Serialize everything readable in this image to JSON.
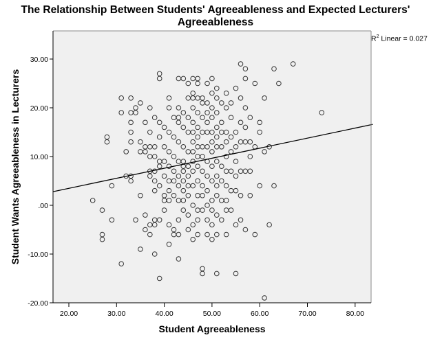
{
  "chart_data": {
    "type": "scatter",
    "title": "The Relationship Between Students' Agreeableness and Expected Lecturers' Agreeableness",
    "xlabel": "Student Agreeableness",
    "ylabel": "Student Wants Agreeableness in Lecturers",
    "xlim": [
      16.7,
      83.7
    ],
    "ylim": [
      -20,
      35
    ],
    "x_ticks": [
      "20.00",
      "30.00",
      "40.00",
      "50.00",
      "60.00",
      "70.00",
      "80.00"
    ],
    "y_ticks": [
      "30.00",
      "20.00",
      "10.00",
      ".00",
      "-10.00",
      "-20.00"
    ],
    "y_tick_values": [
      30,
      20,
      10,
      0,
      -10,
      -20
    ],
    "x_tick_values": [
      20,
      30,
      40,
      50,
      60,
      70,
      80
    ],
    "grid": false,
    "legend": null,
    "annotation": {
      "text": "Linear = 0.027",
      "prefix": "R",
      "sup": "2"
    },
    "fit_line": {
      "type": "linear",
      "r2": 0.027,
      "x0": 16.7,
      "y0": 2.8,
      "x1": 83.7,
      "y1": 16.6
    },
    "points": [
      [
        25,
        1
      ],
      [
        27,
        -1
      ],
      [
        27,
        -6
      ],
      [
        27,
        -7
      ],
      [
        28,
        14
      ],
      [
        28,
        13
      ],
      [
        29,
        4
      ],
      [
        29,
        -3
      ],
      [
        31,
        22
      ],
      [
        31,
        19
      ],
      [
        31,
        -12
      ],
      [
        32,
        11
      ],
      [
        32,
        6
      ],
      [
        33,
        22
      ],
      [
        33,
        19
      ],
      [
        33,
        17
      ],
      [
        33,
        15
      ],
      [
        33,
        13
      ],
      [
        33,
        6
      ],
      [
        33,
        5
      ],
      [
        34,
        20
      ],
      [
        34,
        19
      ],
      [
        34,
        -3
      ],
      [
        35,
        21
      ],
      [
        35,
        13
      ],
      [
        35,
        11
      ],
      [
        35,
        2
      ],
      [
        35,
        -9
      ],
      [
        36,
        17
      ],
      [
        36,
        12
      ],
      [
        36,
        11
      ],
      [
        36,
        -2
      ],
      [
        36,
        -5
      ],
      [
        37,
        20
      ],
      [
        37,
        15
      ],
      [
        37,
        12
      ],
      [
        37,
        10
      ],
      [
        37,
        7
      ],
      [
        37,
        6
      ],
      [
        37,
        -4
      ],
      [
        37,
        -6
      ],
      [
        38,
        18
      ],
      [
        38,
        12
      ],
      [
        38,
        10
      ],
      [
        38,
        7
      ],
      [
        38,
        5
      ],
      [
        38,
        3
      ],
      [
        38,
        -3
      ],
      [
        38,
        -4
      ],
      [
        38,
        -10
      ],
      [
        39,
        27
      ],
      [
        39,
        26
      ],
      [
        39,
        17
      ],
      [
        39,
        14
      ],
      [
        39,
        9
      ],
      [
        39,
        8
      ],
      [
        39,
        4
      ],
      [
        39,
        -3
      ],
      [
        39,
        -15
      ],
      [
        40,
        16
      ],
      [
        40,
        12
      ],
      [
        40,
        9
      ],
      [
        40,
        6
      ],
      [
        40,
        2
      ],
      [
        40,
        1
      ],
      [
        40,
        -1
      ],
      [
        41,
        22
      ],
      [
        41,
        20
      ],
      [
        41,
        15
      ],
      [
        41,
        11
      ],
      [
        41,
        8
      ],
      [
        41,
        5
      ],
      [
        41,
        3
      ],
      [
        41,
        1
      ],
      [
        41,
        -4
      ],
      [
        41,
        -8
      ],
      [
        42,
        18
      ],
      [
        42,
        14
      ],
      [
        42,
        10
      ],
      [
        42,
        7
      ],
      [
        42,
        5
      ],
      [
        42,
        2
      ],
      [
        42,
        -5
      ],
      [
        42,
        -6
      ],
      [
        43,
        26
      ],
      [
        43,
        20
      ],
      [
        43,
        18
      ],
      [
        43,
        17
      ],
      [
        43,
        13
      ],
      [
        43,
        9
      ],
      [
        43,
        6
      ],
      [
        43,
        4
      ],
      [
        43,
        1
      ],
      [
        43,
        -3
      ],
      [
        43,
        -6
      ],
      [
        43,
        -11
      ],
      [
        44,
        26
      ],
      [
        44,
        19
      ],
      [
        44,
        16
      ],
      [
        44,
        12
      ],
      [
        44,
        9
      ],
      [
        44,
        8
      ],
      [
        44,
        7
      ],
      [
        44,
        5
      ],
      [
        44,
        3
      ],
      [
        44,
        1
      ],
      [
        44,
        -1
      ],
      [
        45,
        25
      ],
      [
        45,
        22
      ],
      [
        45,
        18
      ],
      [
        45,
        15
      ],
      [
        45,
        11
      ],
      [
        45,
        8
      ],
      [
        45,
        6
      ],
      [
        45,
        4
      ],
      [
        45,
        2
      ],
      [
        45,
        -2
      ],
      [
        45,
        -5
      ],
      [
        46,
        26
      ],
      [
        46,
        23
      ],
      [
        46,
        22
      ],
      [
        46,
        20
      ],
      [
        46,
        17
      ],
      [
        46,
        15
      ],
      [
        46,
        13
      ],
      [
        46,
        11
      ],
      [
        46,
        9
      ],
      [
        46,
        7
      ],
      [
        46,
        4
      ],
      [
        46,
        0
      ],
      [
        46,
        -4
      ],
      [
        46,
        -7
      ],
      [
        47,
        26
      ],
      [
        47,
        25
      ],
      [
        47,
        22
      ],
      [
        47,
        19
      ],
      [
        47,
        16
      ],
      [
        47,
        14
      ],
      [
        47,
        12
      ],
      [
        47,
        10
      ],
      [
        47,
        8
      ],
      [
        47,
        5
      ],
      [
        47,
        2
      ],
      [
        47,
        -1
      ],
      [
        47,
        -3
      ],
      [
        47,
        -6
      ],
      [
        48,
        22
      ],
      [
        48,
        21
      ],
      [
        48,
        18
      ],
      [
        48,
        15
      ],
      [
        48,
        12
      ],
      [
        48,
        10
      ],
      [
        48,
        7
      ],
      [
        48,
        4
      ],
      [
        48,
        2
      ],
      [
        48,
        -1
      ],
      [
        48,
        -13
      ],
      [
        48,
        -14
      ],
      [
        49,
        25
      ],
      [
        49,
        21
      ],
      [
        49,
        19
      ],
      [
        49,
        17
      ],
      [
        49,
        15
      ],
      [
        49,
        12
      ],
      [
        49,
        9
      ],
      [
        49,
        6
      ],
      [
        49,
        3
      ],
      [
        49,
        0
      ],
      [
        49,
        -3
      ],
      [
        49,
        -6
      ],
      [
        50,
        26
      ],
      [
        50,
        23
      ],
      [
        50,
        20
      ],
      [
        50,
        18
      ],
      [
        50,
        15
      ],
      [
        50,
        13
      ],
      [
        50,
        11
      ],
      [
        50,
        8
      ],
      [
        50,
        5
      ],
      [
        50,
        1
      ],
      [
        50,
        -1
      ],
      [
        50,
        -4
      ],
      [
        50,
        -7
      ],
      [
        51,
        24
      ],
      [
        51,
        22
      ],
      [
        51,
        19
      ],
      [
        51,
        16
      ],
      [
        51,
        14
      ],
      [
        51,
        12
      ],
      [
        51,
        9
      ],
      [
        51,
        6
      ],
      [
        51,
        4
      ],
      [
        51,
        2
      ],
      [
        51,
        -2
      ],
      [
        51,
        -6
      ],
      [
        51,
        -14
      ],
      [
        52,
        21
      ],
      [
        52,
        17
      ],
      [
        52,
        15
      ],
      [
        52,
        12
      ],
      [
        52,
        8
      ],
      [
        52,
        5
      ],
      [
        52,
        1
      ],
      [
        52,
        -3
      ],
      [
        53,
        23
      ],
      [
        53,
        20
      ],
      [
        53,
        15
      ],
      [
        53,
        13
      ],
      [
        53,
        10
      ],
      [
        53,
        7
      ],
      [
        53,
        4
      ],
      [
        53,
        1
      ],
      [
        53,
        -1
      ],
      [
        53,
        -6
      ],
      [
        54,
        21
      ],
      [
        54,
        18
      ],
      [
        54,
        14
      ],
      [
        54,
        11
      ],
      [
        54,
        7
      ],
      [
        54,
        3
      ],
      [
        54,
        -1
      ],
      [
        55,
        24
      ],
      [
        55,
        15
      ],
      [
        55,
        12
      ],
      [
        55,
        9
      ],
      [
        55,
        6
      ],
      [
        55,
        3
      ],
      [
        55,
        -4
      ],
      [
        55,
        -14
      ],
      [
        56,
        29
      ],
      [
        56,
        22
      ],
      [
        56,
        17
      ],
      [
        56,
        13
      ],
      [
        56,
        7
      ],
      [
        56,
        2
      ],
      [
        56,
        -3
      ],
      [
        57,
        28
      ],
      [
        57,
        26
      ],
      [
        57,
        20
      ],
      [
        57,
        16
      ],
      [
        57,
        13
      ],
      [
        57,
        7
      ],
      [
        57,
        -5
      ],
      [
        58,
        18
      ],
      [
        58,
        13
      ],
      [
        58,
        10
      ],
      [
        58,
        7
      ],
      [
        58,
        2
      ],
      [
        59,
        25
      ],
      [
        59,
        12
      ],
      [
        59,
        -6
      ],
      [
        60,
        17
      ],
      [
        60,
        15
      ],
      [
        60,
        4
      ],
      [
        61,
        22
      ],
      [
        61,
        11
      ],
      [
        61,
        -19
      ],
      [
        62,
        12
      ],
      [
        62,
        -4
      ],
      [
        63,
        28
      ],
      [
        63,
        4
      ],
      [
        64,
        25
      ],
      [
        67,
        29
      ],
      [
        73,
        19
      ]
    ]
  }
}
